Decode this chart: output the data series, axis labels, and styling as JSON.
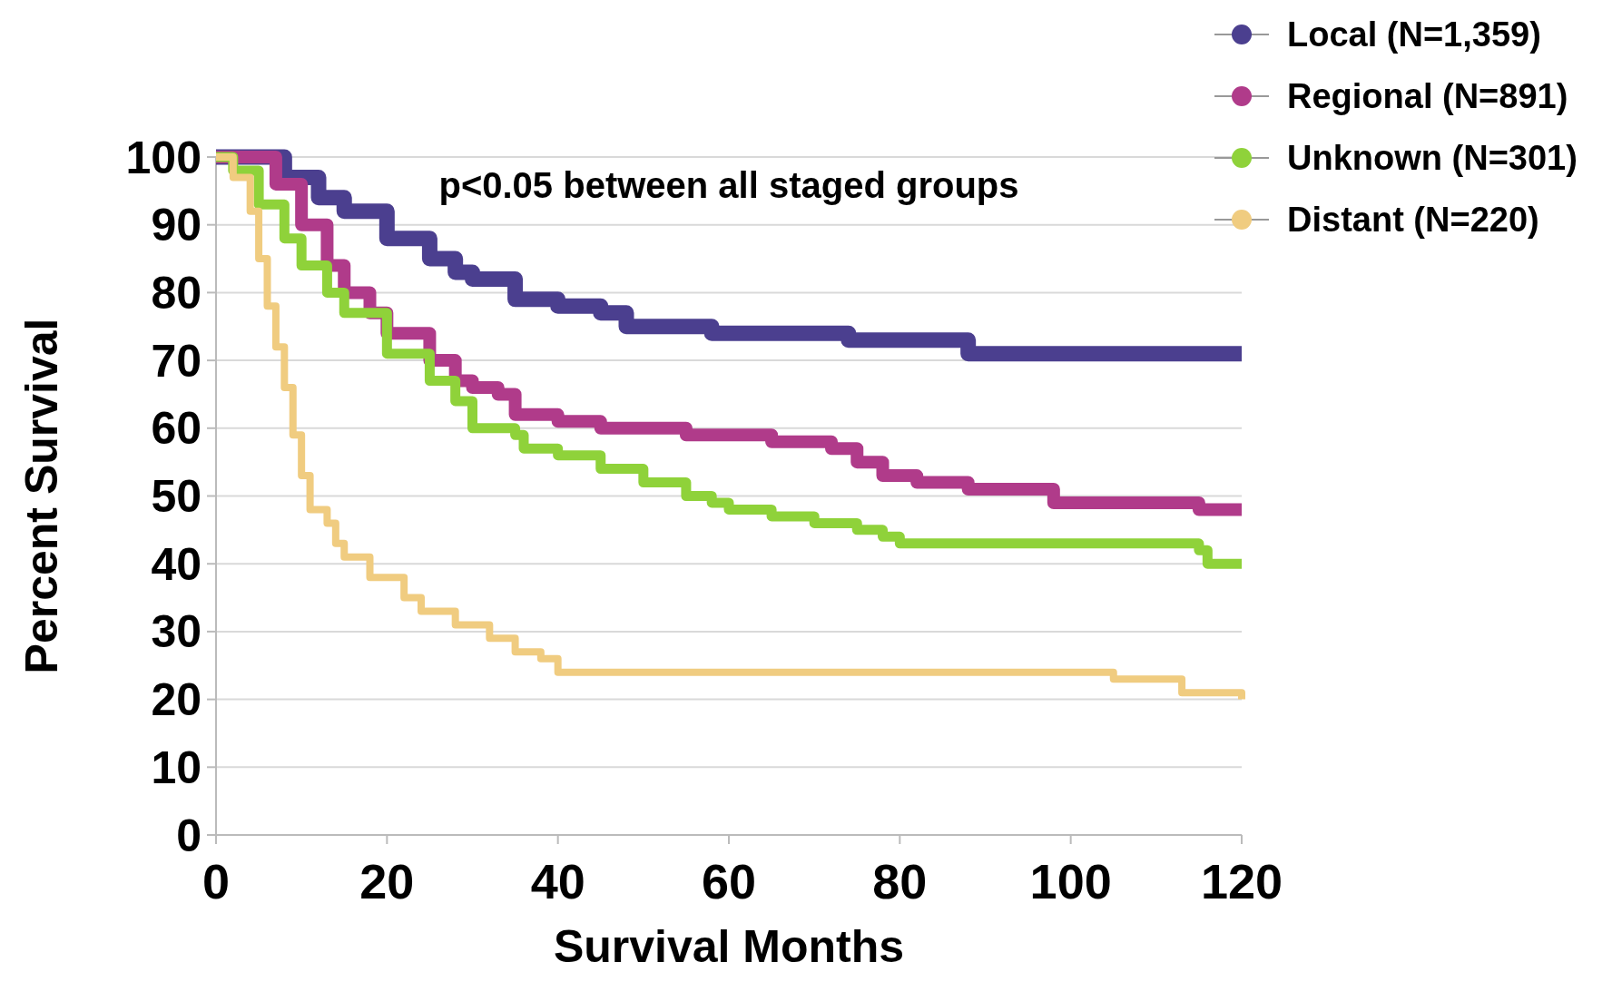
{
  "chart_data": {
    "type": "step",
    "xlabel": "Survival Months",
    "ylabel": "Percent Survival",
    "annotations": [
      "p<0.05 between all staged groups"
    ],
    "xlim": [
      0,
      120
    ],
    "ylim": [
      0,
      100
    ],
    "xticks": [
      0,
      20,
      40,
      60,
      80,
      100,
      120
    ],
    "yticks": [
      0,
      10,
      20,
      30,
      40,
      50,
      60,
      70,
      80,
      90,
      100
    ],
    "grid": "y",
    "legend": "top right",
    "marker": "none",
    "line_style": "solid",
    "series": [
      {
        "name": "Local (N=1,359)",
        "color": "#4b3f8f",
        "x": [
          0,
          5,
          8,
          12,
          15,
          20,
          25,
          28,
          30,
          35,
          40,
          45,
          48,
          55,
          58,
          65,
          70,
          74,
          80,
          86,
          88,
          100,
          120
        ],
        "values": [
          100,
          100,
          97,
          94,
          92,
          88,
          85,
          83,
          82,
          79,
          78,
          77,
          75,
          75,
          74,
          74,
          74,
          73,
          73,
          73,
          71,
          71,
          71
        ]
      },
      {
        "name": "Regional (N=891)",
        "color": "#b03b8a",
        "x": [
          0,
          4,
          7,
          10,
          13,
          15,
          18,
          20,
          25,
          28,
          30,
          33,
          35,
          40,
          45,
          50,
          55,
          60,
          65,
          70,
          72,
          75,
          78,
          82,
          88,
          95,
          98,
          105,
          115,
          120
        ],
        "values": [
          100,
          100,
          96,
          90,
          84,
          80,
          77,
          74,
          70,
          67,
          66,
          65,
          62,
          61,
          60,
          60,
          59,
          59,
          58,
          58,
          57,
          55,
          53,
          52,
          51,
          51,
          49,
          49,
          48,
          48
        ]
      },
      {
        "name": "Unknown (N=301)",
        "color": "#8fd23a",
        "x": [
          0,
          2,
          5,
          8,
          10,
          13,
          15,
          20,
          25,
          28,
          30,
          35,
          36,
          40,
          45,
          50,
          55,
          58,
          60,
          65,
          70,
          75,
          78,
          80,
          90,
          100,
          115,
          116,
          120
        ],
        "values": [
          100,
          98,
          93,
          88,
          84,
          80,
          77,
          71,
          67,
          64,
          60,
          59,
          57,
          56,
          54,
          52,
          50,
          49,
          48,
          47,
          46,
          45,
          44,
          43,
          43,
          43,
          42,
          40,
          40
        ]
      },
      {
        "name": "Distant (N=220)",
        "color": "#f0cc80",
        "x": [
          0,
          2,
          4,
          5,
          6,
          7,
          8,
          9,
          10,
          11,
          13,
          14,
          15,
          18,
          22,
          24,
          28,
          32,
          35,
          38,
          40,
          45,
          60,
          80,
          100,
          105,
          110,
          113,
          120
        ],
        "values": [
          100,
          97,
          92,
          85,
          78,
          72,
          66,
          59,
          53,
          48,
          46,
          43,
          41,
          38,
          35,
          33,
          31,
          29,
          27,
          26,
          24,
          24,
          24,
          24,
          24,
          23,
          23,
          21,
          20
        ]
      }
    ]
  }
}
